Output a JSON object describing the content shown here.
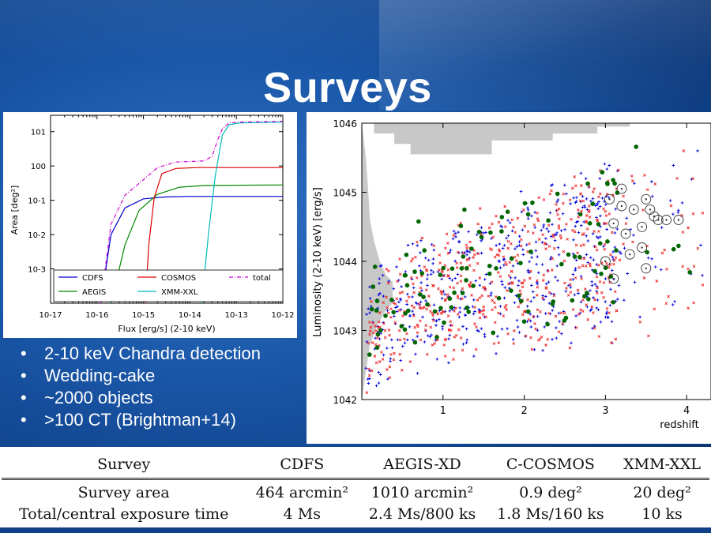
{
  "title": "Surveys",
  "bullets": [
    "2-10 keV Chandra detection",
    "Wedding-cake",
    "~2000 objects",
    ">100 CT (Brightman+14)"
  ],
  "chart_data": [
    {
      "type": "line",
      "xlabel": "Flux [erg/s] (2-10 keV)",
      "ylabel": "Area [deg²]",
      "xscale": "log",
      "yscale": "log",
      "xlim": [
        1e-17,
        1e-12
      ],
      "ylim": [
        0.0001,
        30
      ],
      "xticks": [
        "10-17",
        "10-16",
        "10-15",
        "10-14",
        "10-13",
        "10-12"
      ],
      "yticks": [
        "10-3",
        "10-2",
        "10-1",
        "100",
        "101"
      ],
      "legend": "lower-center",
      "series": [
        {
          "name": "CDFS",
          "color": "#0000cc",
          "x": [
            1.2e-16,
            2e-16,
            4e-16,
            1e-15,
            3e-15,
            1e-14,
            1e-12
          ],
          "y": [
            0.0001,
            0.01,
            0.06,
            0.11,
            0.125,
            0.13,
            0.13
          ]
        },
        {
          "name": "AEGIS",
          "color": "#008800",
          "x": [
            2e-16,
            4e-16,
            8e-16,
            2e-15,
            6e-15,
            2e-14,
            1e-12
          ],
          "y": [
            0.0001,
            0.005,
            0.05,
            0.15,
            0.24,
            0.27,
            0.28
          ]
        },
        {
          "name": "COSMOS",
          "color": "#dd0000",
          "x": [
            1.1e-15,
            1.3e-15,
            1.7e-15,
            2.5e-15,
            5e-15,
            1.5e-14,
            1e-12
          ],
          "y": [
            0.0001,
            0.005,
            0.12,
            0.6,
            0.85,
            0.9,
            0.9
          ]
        },
        {
          "name": "XMM-XXL",
          "color": "#00bbbb",
          "x": [
            1.8e-14,
            2.5e-14,
            3.5e-14,
            5e-14,
            7e-14,
            1.2e-13,
            1e-12
          ],
          "y": [
            0.0001,
            0.01,
            0.5,
            8,
            16,
            18,
            19
          ]
        },
        {
          "name": "total",
          "color": "#cc00cc",
          "x": [
            1.2e-16,
            2e-16,
            4e-16,
            1e-15,
            2e-15,
            5e-15,
            2e-14,
            3e-14,
            4e-14,
            5e-14,
            7e-14,
            1.2e-13,
            1e-12
          ],
          "y": [
            0.0001,
            0.02,
            0.14,
            0.4,
            0.9,
            1.3,
            1.4,
            1.9,
            6,
            12,
            18,
            19,
            20
          ]
        }
      ]
    },
    {
      "type": "scatter",
      "xlabel": "redshift",
      "ylabel": "Luminosity (2-10 keV) [erg/s]",
      "yscale": "log",
      "xlim": [
        0,
        4.3
      ],
      "ylim": [
        1e+42,
        1e+46
      ],
      "xticks": [
        "1",
        "2",
        "3",
        "4"
      ],
      "yticks": [
        "1042",
        "1043",
        "1044",
        "1045",
        "1046"
      ],
      "series": [
        {
          "name": "",
          "color": "#0000dd",
          "marker": "plus"
        },
        {
          "name": "",
          "color": "#ee2222",
          "marker": "x"
        },
        {
          "name": "",
          "color": "#006600",
          "marker": "dot"
        }
      ]
    }
  ],
  "table": {
    "headers": [
      "Survey",
      "CDFS",
      "AEGIS-XD",
      "C-COSMOS",
      "XMM-XXL"
    ],
    "rows": [
      {
        "label": "Survey area",
        "cells": [
          "464 arcmin²",
          "1010 arcmin²",
          "0.9 deg²",
          "20 deg²"
        ]
      },
      {
        "label": "Total/central exposure time",
        "cells": [
          "4 Ms",
          "2.4 Ms/800 ks",
          "1.8 Ms/160 ks",
          "10 ks"
        ]
      }
    ]
  },
  "colors": {
    "background": "#1a57a8",
    "title": "#ffffff",
    "bullet_text": "#ffffff"
  }
}
